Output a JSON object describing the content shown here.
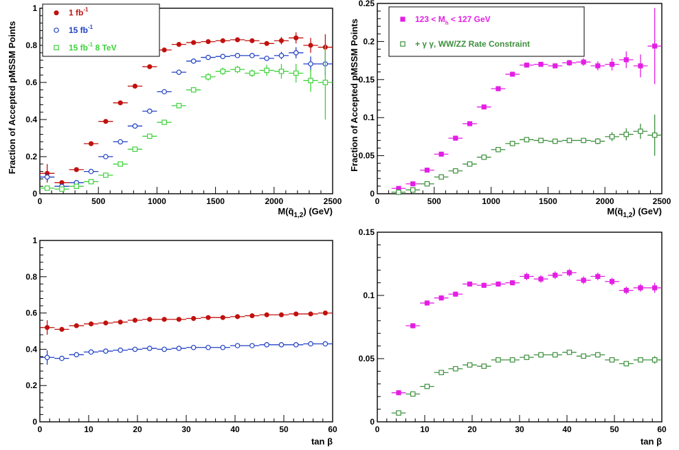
{
  "figure": {
    "ylabel_top": "Fraction of Accepted pMSSM Points",
    "xlabel_mass": "M(q̃1,2) (GeV)",
    "xlabel_tanb": "tan β"
  },
  "chart_data": [
    {
      "type": "scatter",
      "panel": "top-left",
      "ylabel": "Fraction of Accepted pMSSM Points",
      "xlabel_main": "M(q̃",
      "xlabel_sub": "1,2",
      "xlabel_tail": ") (GeV)",
      "xlim": [
        0,
        2500
      ],
      "ylim": [
        0,
        1.0
      ],
      "xticks": [
        0,
        500,
        1000,
        1500,
        2000,
        2500
      ],
      "yticks": [
        0,
        0.2,
        0.4,
        0.6,
        0.8,
        1
      ],
      "xerr": 62.5,
      "legend_position": "top-left",
      "series": [
        {
          "legend": "1 fb",
          "legend_sup": "-1",
          "color": "#c0110e",
          "marker": "filled-circle",
          "x": [
            62.5,
            187.5,
            312.5,
            437.5,
            562.5,
            687.5,
            812.5,
            937.5,
            1062.5,
            1187.5,
            1312.5,
            1437.5,
            1562.5,
            1687.5,
            1812.5,
            1937.5,
            2062.5,
            2187.5,
            2312.5,
            2437.5
          ],
          "y": [
            0.11,
            0.06,
            0.13,
            0.27,
            0.39,
            0.49,
            0.58,
            0.685,
            0.775,
            0.805,
            0.815,
            0.82,
            0.825,
            0.83,
            0.825,
            0.81,
            0.825,
            0.84,
            0.8,
            0.79
          ],
          "yerr": [
            0.05,
            0.01,
            0.01,
            0.01,
            0.01,
            0.01,
            0.01,
            0.01,
            0.01,
            0.01,
            0.01,
            0.01,
            0.01,
            0.01,
            0.01,
            0.01,
            0.02,
            0.03,
            0.04,
            0.07
          ]
        },
        {
          "legend": "15 fb",
          "legend_sup": "-1",
          "color": "#1e3fc4",
          "marker": "open-circle",
          "x": [
            62.5,
            187.5,
            312.5,
            437.5,
            562.5,
            687.5,
            812.5,
            937.5,
            1062.5,
            1187.5,
            1312.5,
            1437.5,
            1562.5,
            1687.5,
            1812.5,
            1937.5,
            2062.5,
            2187.5,
            2312.5,
            2437.5
          ],
          "y": [
            0.09,
            0.04,
            0.06,
            0.12,
            0.2,
            0.28,
            0.365,
            0.445,
            0.55,
            0.655,
            0.715,
            0.735,
            0.74,
            0.745,
            0.745,
            0.73,
            0.745,
            0.76,
            0.7,
            0.7
          ],
          "yerr": [
            0.02,
            0.01,
            0.01,
            0.01,
            0.01,
            0.01,
            0.01,
            0.01,
            0.01,
            0.01,
            0.01,
            0.01,
            0.01,
            0.01,
            0.01,
            0.01,
            0.02,
            0.03,
            0.04,
            0.06
          ]
        },
        {
          "legend": "15 fb",
          "legend_sup": "-1",
          "legend_tail": " 8 TeV",
          "color": "#3ed23a",
          "marker": "open-square",
          "x": [
            62.5,
            187.5,
            312.5,
            437.5,
            562.5,
            687.5,
            812.5,
            937.5,
            1062.5,
            1187.5,
            1312.5,
            1437.5,
            1562.5,
            1687.5,
            1812.5,
            1937.5,
            2062.5,
            2187.5,
            2312.5,
            2437.5
          ],
          "y": [
            0.03,
            0.025,
            0.04,
            0.065,
            0.1,
            0.16,
            0.24,
            0.31,
            0.385,
            0.475,
            0.56,
            0.63,
            0.66,
            0.67,
            0.65,
            0.665,
            0.66,
            0.65,
            0.61,
            0.6
          ],
          "yerr": [
            0.01,
            0.01,
            0.01,
            0.01,
            0.01,
            0.01,
            0.01,
            0.01,
            0.01,
            0.01,
            0.01,
            0.02,
            0.02,
            0.02,
            0.02,
            0.03,
            0.04,
            0.05,
            0.06,
            0.2
          ]
        }
      ]
    },
    {
      "type": "scatter",
      "panel": "top-right",
      "ylabel": "Fraction of Accepted pMSSM Points",
      "xlabel_main": "M(q̃",
      "xlabel_sub": "1,2",
      "xlabel_tail": ") (GeV)",
      "xlim": [
        0,
        2500
      ],
      "ylim": [
        0,
        0.25
      ],
      "xticks": [
        0,
        500,
        1000,
        1500,
        2000,
        2500
      ],
      "yticks": [
        0,
        0.05,
        0.1,
        0.15,
        0.2,
        0.25
      ],
      "xerr": 62.5,
      "legend_position": "top-right",
      "series": [
        {
          "legend": "123 < M",
          "legend_sub": "h",
          "legend_tail": " < 127 GeV",
          "color": "#e41ee4",
          "marker": "filled-square",
          "x": [
            187.5,
            312.5,
            437.5,
            562.5,
            687.5,
            812.5,
            937.5,
            1062.5,
            1187.5,
            1312.5,
            1437.5,
            1562.5,
            1687.5,
            1812.5,
            1937.5,
            2062.5,
            2187.5,
            2312.5,
            2437.5
          ],
          "y": [
            0.007,
            0.013,
            0.031,
            0.052,
            0.073,
            0.092,
            0.114,
            0.138,
            0.157,
            0.169,
            0.17,
            0.168,
            0.172,
            0.173,
            0.168,
            0.17,
            0.176,
            0.168,
            0.194
          ],
          "yerr": [
            0.001,
            0.001,
            0.001,
            0.001,
            0.001,
            0.001,
            0.001,
            0.002,
            0.002,
            0.003,
            0.003,
            0.003,
            0.004,
            0.005,
            0.006,
            0.008,
            0.011,
            0.015,
            0.05
          ]
        },
        {
          "legend": "+ γ γ, WW/ZZ Rate Constraint",
          "color": "#3d8f3d",
          "marker": "open-square",
          "x": [
            187.5,
            312.5,
            437.5,
            562.5,
            687.5,
            812.5,
            937.5,
            1062.5,
            1187.5,
            1312.5,
            1437.5,
            1562.5,
            1687.5,
            1812.5,
            1937.5,
            2062.5,
            2187.5,
            2312.5,
            2437.5
          ],
          "y": [
            0.002,
            0.005,
            0.013,
            0.022,
            0.03,
            0.039,
            0.048,
            0.058,
            0.066,
            0.071,
            0.07,
            0.069,
            0.07,
            0.07,
            0.069,
            0.075,
            0.078,
            0.082,
            0.077
          ],
          "yerr": [
            0.001,
            0.001,
            0.001,
            0.001,
            0.001,
            0.001,
            0.001,
            0.001,
            0.002,
            0.002,
            0.002,
            0.002,
            0.003,
            0.003,
            0.004,
            0.006,
            0.008,
            0.01,
            0.027
          ]
        }
      ]
    },
    {
      "type": "scatter",
      "panel": "bottom-left",
      "xlabel": "tan β",
      "xlim": [
        0,
        60
      ],
      "ylim": [
        0,
        1.0
      ],
      "xticks": [
        0,
        10,
        20,
        30,
        40,
        50,
        60
      ],
      "yticks": [
        0,
        0.2,
        0.4,
        0.6,
        0.8,
        1
      ],
      "xerr": 1.5,
      "series": [
        {
          "name": "1 fb-1",
          "color": "#c0110e",
          "marker": "filled-circle",
          "x": [
            1.5,
            4.5,
            7.5,
            10.5,
            13.5,
            16.5,
            19.5,
            22.5,
            25.5,
            28.5,
            31.5,
            34.5,
            37.5,
            40.5,
            43.5,
            46.5,
            49.5,
            52.5,
            55.5,
            58.5
          ],
          "y": [
            0.52,
            0.51,
            0.53,
            0.54,
            0.545,
            0.55,
            0.56,
            0.565,
            0.565,
            0.565,
            0.57,
            0.575,
            0.575,
            0.58,
            0.585,
            0.59,
            0.59,
            0.595,
            0.595,
            0.6
          ],
          "yerr": [
            0.04,
            0.01,
            0.01,
            0.01,
            0.01,
            0.01,
            0.01,
            0.01,
            0.01,
            0.01,
            0.01,
            0.01,
            0.01,
            0.01,
            0.01,
            0.01,
            0.01,
            0.01,
            0.01,
            0.01
          ]
        },
        {
          "name": "15 fb-1",
          "color": "#1e3fc4",
          "marker": "open-circle",
          "x": [
            1.5,
            4.5,
            7.5,
            10.5,
            13.5,
            16.5,
            19.5,
            22.5,
            25.5,
            28.5,
            31.5,
            34.5,
            37.5,
            40.5,
            43.5,
            46.5,
            49.5,
            52.5,
            55.5,
            58.5
          ],
          "y": [
            0.355,
            0.35,
            0.37,
            0.385,
            0.39,
            0.395,
            0.4,
            0.405,
            0.4,
            0.405,
            0.41,
            0.41,
            0.41,
            0.42,
            0.42,
            0.425,
            0.425,
            0.425,
            0.43,
            0.43
          ],
          "yerr": [
            0.04,
            0.01,
            0.01,
            0.01,
            0.01,
            0.01,
            0.01,
            0.01,
            0.01,
            0.01,
            0.01,
            0.01,
            0.01,
            0.01,
            0.01,
            0.01,
            0.01,
            0.01,
            0.01,
            0.01
          ]
        }
      ]
    },
    {
      "type": "scatter",
      "panel": "bottom-right",
      "xlabel": "tan β",
      "xlim": [
        0,
        60
      ],
      "ylim": [
        0,
        0.15
      ],
      "xticks": [
        0,
        10,
        20,
        30,
        40,
        50,
        60
      ],
      "yticks": [
        0,
        0.05,
        0.1,
        0.15
      ],
      "xerr": 1.5,
      "series": [
        {
          "name": "123 < Mh < 127 GeV",
          "color": "#e41ee4",
          "marker": "filled-square",
          "x": [
            4.5,
            7.5,
            10.5,
            13.5,
            16.5,
            19.5,
            22.5,
            25.5,
            28.5,
            31.5,
            34.5,
            37.5,
            40.5,
            43.5,
            46.5,
            49.5,
            52.5,
            55.5,
            58.5
          ],
          "y": [
            0.023,
            0.076,
            0.094,
            0.098,
            0.101,
            0.109,
            0.108,
            0.109,
            0.11,
            0.115,
            0.113,
            0.116,
            0.118,
            0.112,
            0.115,
            0.111,
            0.104,
            0.106,
            0.106
          ],
          "yerr": [
            0.001,
            0.002,
            0.002,
            0.002,
            0.002,
            0.002,
            0.002,
            0.002,
            0.002,
            0.003,
            0.003,
            0.003,
            0.003,
            0.003,
            0.003,
            0.003,
            0.003,
            0.003,
            0.004
          ]
        },
        {
          "name": "+ γ γ, WW/ZZ Rate Constraint",
          "color": "#3d8f3d",
          "marker": "open-square",
          "x": [
            4.5,
            7.5,
            10.5,
            13.5,
            16.5,
            19.5,
            22.5,
            25.5,
            28.5,
            31.5,
            34.5,
            37.5,
            40.5,
            43.5,
            46.5,
            49.5,
            52.5,
            55.5,
            58.5
          ],
          "y": [
            0.007,
            0.022,
            0.028,
            0.039,
            0.042,
            0.045,
            0.044,
            0.049,
            0.049,
            0.051,
            0.053,
            0.053,
            0.055,
            0.052,
            0.053,
            0.049,
            0.046,
            0.049,
            0.049
          ],
          "yerr": [
            0.001,
            0.001,
            0.001,
            0.002,
            0.002,
            0.002,
            0.002,
            0.002,
            0.002,
            0.002,
            0.002,
            0.002,
            0.002,
            0.002,
            0.002,
            0.002,
            0.002,
            0.002,
            0.003
          ]
        }
      ]
    }
  ]
}
